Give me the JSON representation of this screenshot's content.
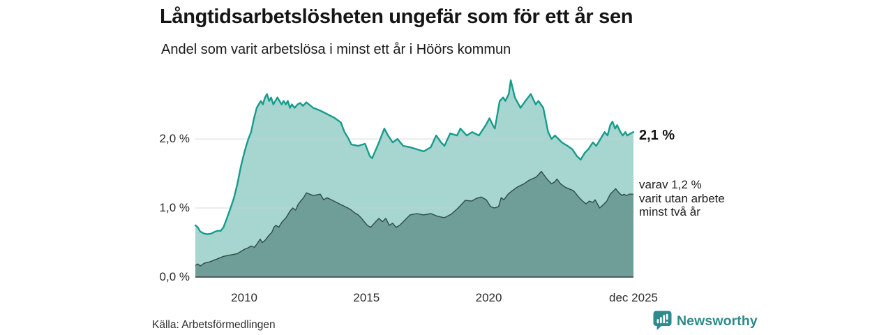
{
  "header": {
    "title": "Långtidsarbetslösheten ungefär som för ett år sen",
    "subtitle": "Andel som varit arbetslösa i minst ett år i Höörs kommun"
  },
  "chart_data": {
    "type": "area",
    "title": "Långtidsarbetslösheten ungefär som för ett år sen",
    "subtitle": "Andel som varit arbetslösa i minst ett år i Höörs kommun",
    "grid": true,
    "legend": "none",
    "x_axis": {
      "range": [
        2008.0,
        2025.92
      ],
      "ticks": [
        {
          "label": "2010",
          "year": 2010
        },
        {
          "label": "2015",
          "year": 2015
        },
        {
          "label": "2020",
          "year": 2020
        },
        {
          "label": "dec 2025",
          "year": 2025.92
        }
      ]
    },
    "y_axis": {
      "unit": "%",
      "range": [
        0,
        2.9
      ],
      "ticks": [
        {
          "label": "0,0 %",
          "value": 0
        },
        {
          "label": "1,0 %",
          "value": 1
        },
        {
          "label": "2,0 %",
          "value": 2
        }
      ]
    },
    "series": [
      {
        "name": "Andel arbetslösa minst ett år",
        "line_color": "#169b8d",
        "fill_color": "#a6d6cf",
        "line_width": 2.4,
        "points": [
          [
            2008.0,
            0.75
          ],
          [
            2008.1,
            0.72
          ],
          [
            2008.2,
            0.66
          ],
          [
            2008.36,
            0.63
          ],
          [
            2008.5,
            0.62
          ],
          [
            2008.65,
            0.63
          ],
          [
            2008.76,
            0.65
          ],
          [
            2008.9,
            0.67
          ],
          [
            2009.04,
            0.67
          ],
          [
            2009.15,
            0.72
          ],
          [
            2009.29,
            0.85
          ],
          [
            2009.44,
            1.0
          ],
          [
            2009.58,
            1.15
          ],
          [
            2009.72,
            1.35
          ],
          [
            2009.86,
            1.6
          ],
          [
            2010.0,
            1.8
          ],
          [
            2010.08,
            1.9
          ],
          [
            2010.17,
            2.0
          ],
          [
            2010.28,
            2.1
          ],
          [
            2010.4,
            2.3
          ],
          [
            2010.51,
            2.45
          ],
          [
            2010.59,
            2.5
          ],
          [
            2010.68,
            2.55
          ],
          [
            2010.76,
            2.5
          ],
          [
            2010.85,
            2.6
          ],
          [
            2010.93,
            2.65
          ],
          [
            2011.02,
            2.55
          ],
          [
            2011.1,
            2.6
          ],
          [
            2011.19,
            2.5
          ],
          [
            2011.27,
            2.55
          ],
          [
            2011.36,
            2.6
          ],
          [
            2011.44,
            2.55
          ],
          [
            2011.53,
            2.5
          ],
          [
            2011.61,
            2.55
          ],
          [
            2011.7,
            2.5
          ],
          [
            2011.78,
            2.55
          ],
          [
            2011.87,
            2.45
          ],
          [
            2011.95,
            2.5
          ],
          [
            2012.06,
            2.45
          ],
          [
            2012.18,
            2.5
          ],
          [
            2012.29,
            2.52
          ],
          [
            2012.4,
            2.48
          ],
          [
            2012.54,
            2.53
          ],
          [
            2012.82,
            2.45
          ],
          [
            2013.11,
            2.41
          ],
          [
            2013.39,
            2.36
          ],
          [
            2013.67,
            2.31
          ],
          [
            2013.95,
            2.24
          ],
          [
            2014.1,
            2.1
          ],
          [
            2014.24,
            2.02
          ],
          [
            2014.38,
            1.92
          ],
          [
            2014.66,
            1.9
          ],
          [
            2014.94,
            1.93
          ],
          [
            2015.14,
            1.75
          ],
          [
            2015.23,
            1.72
          ],
          [
            2015.51,
            1.95
          ],
          [
            2015.73,
            2.15
          ],
          [
            2015.88,
            2.05
          ],
          [
            2016.07,
            1.95
          ],
          [
            2016.27,
            2.0
          ],
          [
            2016.5,
            1.9
          ],
          [
            2016.78,
            1.88
          ],
          [
            2017.06,
            1.85
          ],
          [
            2017.34,
            1.82
          ],
          [
            2017.63,
            1.88
          ],
          [
            2017.85,
            2.05
          ],
          [
            2018.05,
            1.95
          ],
          [
            2018.19,
            1.9
          ],
          [
            2018.42,
            2.08
          ],
          [
            2018.7,
            2.05
          ],
          [
            2018.84,
            2.15
          ],
          [
            2019.1,
            2.05
          ],
          [
            2019.32,
            2.1
          ],
          [
            2019.6,
            2.05
          ],
          [
            2019.88,
            2.2
          ],
          [
            2020.03,
            2.3
          ],
          [
            2020.17,
            2.2
          ],
          [
            2020.25,
            2.15
          ],
          [
            2020.45,
            2.55
          ],
          [
            2020.59,
            2.6
          ],
          [
            2020.68,
            2.55
          ],
          [
            2020.82,
            2.65
          ],
          [
            2020.9,
            2.85
          ],
          [
            2021.07,
            2.6
          ],
          [
            2021.3,
            2.45
          ],
          [
            2021.5,
            2.55
          ],
          [
            2021.72,
            2.65
          ],
          [
            2021.92,
            2.5
          ],
          [
            2022.03,
            2.55
          ],
          [
            2022.23,
            2.45
          ],
          [
            2022.43,
            2.1
          ],
          [
            2022.57,
            2.0
          ],
          [
            2022.71,
            2.05
          ],
          [
            2022.85,
            2.0
          ],
          [
            2022.99,
            1.95
          ],
          [
            2023.22,
            1.9
          ],
          [
            2023.42,
            1.85
          ],
          [
            2023.61,
            1.75
          ],
          [
            2023.76,
            1.7
          ],
          [
            2023.93,
            1.8
          ],
          [
            2024.07,
            1.85
          ],
          [
            2024.26,
            1.95
          ],
          [
            2024.4,
            1.9
          ],
          [
            2024.57,
            2.0
          ],
          [
            2024.74,
            2.1
          ],
          [
            2024.86,
            2.05
          ],
          [
            2024.97,
            2.2
          ],
          [
            2025.06,
            2.25
          ],
          [
            2025.17,
            2.15
          ],
          [
            2025.25,
            2.2
          ],
          [
            2025.39,
            2.1
          ],
          [
            2025.48,
            2.05
          ],
          [
            2025.59,
            2.1
          ],
          [
            2025.67,
            2.05
          ],
          [
            2025.8,
            2.08
          ],
          [
            2025.92,
            2.1
          ]
        ]
      },
      {
        "name": "Andel utan arbete minst två år",
        "line_color": "#2f4c47",
        "fill_color": "#6f9e98",
        "line_width": 1.4,
        "points": [
          [
            2008.0,
            0.17
          ],
          [
            2008.1,
            0.19
          ],
          [
            2008.2,
            0.16
          ],
          [
            2008.36,
            0.2
          ],
          [
            2008.59,
            0.22
          ],
          [
            2008.87,
            0.26
          ],
          [
            2009.15,
            0.3
          ],
          [
            2009.44,
            0.32
          ],
          [
            2009.72,
            0.34
          ],
          [
            2010.0,
            0.4
          ],
          [
            2010.14,
            0.42
          ],
          [
            2010.28,
            0.45
          ],
          [
            2010.42,
            0.43
          ],
          [
            2010.56,
            0.5
          ],
          [
            2010.65,
            0.55
          ],
          [
            2010.73,
            0.5
          ],
          [
            2010.85,
            0.53
          ],
          [
            2011.0,
            0.6
          ],
          [
            2011.13,
            0.65
          ],
          [
            2011.21,
            0.72
          ],
          [
            2011.3,
            0.75
          ],
          [
            2011.41,
            0.72
          ],
          [
            2011.55,
            0.8
          ],
          [
            2011.69,
            0.85
          ],
          [
            2011.78,
            0.9
          ],
          [
            2011.86,
            0.95
          ],
          [
            2011.98,
            1.0
          ],
          [
            2012.1,
            0.97
          ],
          [
            2012.2,
            1.05
          ],
          [
            2012.31,
            1.1
          ],
          [
            2012.43,
            1.15
          ],
          [
            2012.54,
            1.22
          ],
          [
            2012.82,
            1.18
          ],
          [
            2013.11,
            1.2
          ],
          [
            2013.25,
            1.12
          ],
          [
            2013.39,
            1.15
          ],
          [
            2013.67,
            1.1
          ],
          [
            2013.95,
            1.05
          ],
          [
            2014.24,
            1.0
          ],
          [
            2014.38,
            0.97
          ],
          [
            2014.52,
            0.93
          ],
          [
            2014.66,
            0.9
          ],
          [
            2014.8,
            0.85
          ],
          [
            2015.03,
            0.75
          ],
          [
            2015.17,
            0.72
          ],
          [
            2015.37,
            0.8
          ],
          [
            2015.51,
            0.85
          ],
          [
            2015.65,
            0.8
          ],
          [
            2015.79,
            0.85
          ],
          [
            2015.93,
            0.75
          ],
          [
            2016.07,
            0.78
          ],
          [
            2016.21,
            0.72
          ],
          [
            2016.36,
            0.75
          ],
          [
            2016.64,
            0.85
          ],
          [
            2016.78,
            0.9
          ],
          [
            2017.06,
            0.92
          ],
          [
            2017.34,
            0.9
          ],
          [
            2017.63,
            0.92
          ],
          [
            2017.91,
            0.88
          ],
          [
            2018.19,
            0.86
          ],
          [
            2018.47,
            0.91
          ],
          [
            2018.75,
            1.0
          ],
          [
            2019.04,
            1.11
          ],
          [
            2019.3,
            1.1
          ],
          [
            2019.5,
            1.14
          ],
          [
            2019.69,
            1.16
          ],
          [
            2019.9,
            1.12
          ],
          [
            2020.08,
            1.02
          ],
          [
            2020.23,
            1.0
          ],
          [
            2020.4,
            1.02
          ],
          [
            2020.51,
            1.15
          ],
          [
            2020.62,
            1.12
          ],
          [
            2020.79,
            1.2
          ],
          [
            2020.96,
            1.25
          ],
          [
            2021.16,
            1.3
          ],
          [
            2021.44,
            1.35
          ],
          [
            2021.64,
            1.4
          ],
          [
            2021.95,
            1.45
          ],
          [
            2022.15,
            1.53
          ],
          [
            2022.32,
            1.45
          ],
          [
            2022.43,
            1.4
          ],
          [
            2022.57,
            1.35
          ],
          [
            2022.71,
            1.38
          ],
          [
            2022.79,
            1.42
          ],
          [
            2022.94,
            1.35
          ],
          [
            2023.13,
            1.3
          ],
          [
            2023.27,
            1.28
          ],
          [
            2023.47,
            1.25
          ],
          [
            2023.7,
            1.15
          ],
          [
            2023.84,
            1.1
          ],
          [
            2023.98,
            1.06
          ],
          [
            2024.12,
            1.1
          ],
          [
            2024.26,
            1.08
          ],
          [
            2024.35,
            1.12
          ],
          [
            2024.46,
            1.05
          ],
          [
            2024.54,
            1.0
          ],
          [
            2024.69,
            1.05
          ],
          [
            2024.83,
            1.1
          ],
          [
            2024.97,
            1.2
          ],
          [
            2025.11,
            1.25
          ],
          [
            2025.19,
            1.28
          ],
          [
            2025.33,
            1.22
          ],
          [
            2025.45,
            1.18
          ],
          [
            2025.53,
            1.2
          ],
          [
            2025.64,
            1.18
          ],
          [
            2025.75,
            1.2
          ],
          [
            2025.92,
            1.2
          ]
        ]
      }
    ],
    "annotations": {
      "latest_total": "2,1 %",
      "subset_lines": [
        "varav 1,2 %",
        "varit utan arbete",
        "minst två år"
      ]
    }
  },
  "footer": {
    "source": "Källa: Arbetsförmedlingen",
    "brand": "Newsworthy"
  },
  "colors": {
    "accent_teal": "#169b8d",
    "light_fill": "#a6d6cf",
    "dark_fill": "#6f9e98",
    "dark_line": "#2f4c47",
    "gridline": "#ccd0d4",
    "axis_line": "#3d3d3d",
    "brand_teal": "#2e8a8c"
  }
}
